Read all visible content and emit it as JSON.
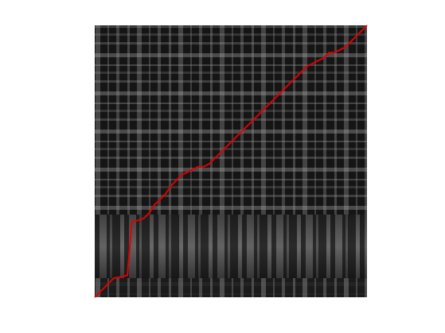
{
  "chart_data": {
    "type": "heatmap",
    "colormap": "grayscale",
    "path_color": "#e00000",
    "background_color": "#1a1a1a",
    "axes_visible": false,
    "grid": false,
    "path": {
      "x": [
        0.0,
        0.03,
        0.07,
        0.12,
        0.13,
        0.135,
        0.14,
        0.15,
        0.18,
        0.2,
        0.22,
        0.24,
        0.26,
        0.28,
        0.3,
        0.32,
        0.34,
        0.36,
        0.38,
        0.4,
        0.42,
        0.44,
        0.46,
        0.48,
        0.5,
        0.52,
        0.54,
        0.56,
        0.58,
        0.6,
        0.62,
        0.64,
        0.66,
        0.68,
        0.7,
        0.72,
        0.74,
        0.76,
        0.78,
        0.8,
        0.82,
        0.84,
        0.86,
        0.88,
        0.9,
        0.92,
        0.94,
        0.96,
        0.98,
        1.0
      ],
      "y": [
        0.0,
        0.03,
        0.07,
        0.08,
        0.2,
        0.27,
        0.28,
        0.28,
        0.29,
        0.31,
        0.34,
        0.36,
        0.38,
        0.41,
        0.43,
        0.45,
        0.46,
        0.47,
        0.48,
        0.48,
        0.49,
        0.51,
        0.53,
        0.55,
        0.57,
        0.59,
        0.61,
        0.63,
        0.65,
        0.67,
        0.69,
        0.71,
        0.73,
        0.75,
        0.77,
        0.79,
        0.81,
        0.83,
        0.85,
        0.86,
        0.87,
        0.88,
        0.9,
        0.9,
        0.91,
        0.92,
        0.94,
        0.96,
        0.98,
        1.0
      ]
    }
  }
}
